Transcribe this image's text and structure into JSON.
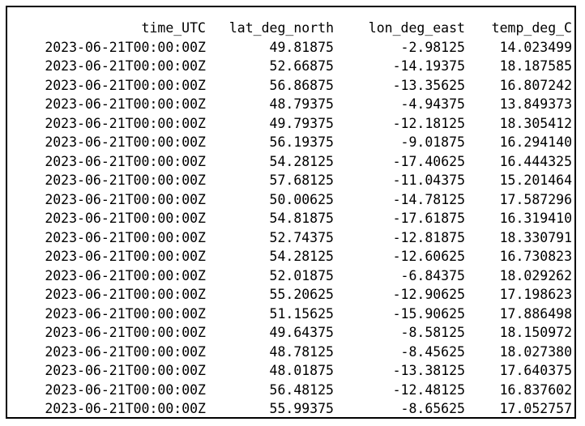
{
  "table": {
    "columns": [
      "time_UTC",
      "lat_deg_north",
      "lon_deg_east",
      "temp_deg_C"
    ],
    "rows": [
      [
        "2023-06-21T00:00:00Z",
        "49.81875",
        "-2.98125",
        "14.023499"
      ],
      [
        "2023-06-21T00:00:00Z",
        "52.66875",
        "-14.19375",
        "18.187585"
      ],
      [
        "2023-06-21T00:00:00Z",
        "56.86875",
        "-13.35625",
        "16.807242"
      ],
      [
        "2023-06-21T00:00:00Z",
        "48.79375",
        "-4.94375",
        "13.849373"
      ],
      [
        "2023-06-21T00:00:00Z",
        "49.79375",
        "-12.18125",
        "18.305412"
      ],
      [
        "2023-06-21T00:00:00Z",
        "56.19375",
        "-9.01875",
        "16.294140"
      ],
      [
        "2023-06-21T00:00:00Z",
        "54.28125",
        "-17.40625",
        "16.444325"
      ],
      [
        "2023-06-21T00:00:00Z",
        "57.68125",
        "-11.04375",
        "15.201464"
      ],
      [
        "2023-06-21T00:00:00Z",
        "50.00625",
        "-14.78125",
        "17.587296"
      ],
      [
        "2023-06-21T00:00:00Z",
        "54.81875",
        "-17.61875",
        "16.319410"
      ],
      [
        "2023-06-21T00:00:00Z",
        "52.74375",
        "-12.81875",
        "18.330791"
      ],
      [
        "2023-06-21T00:00:00Z",
        "54.28125",
        "-12.60625",
        "16.730823"
      ],
      [
        "2023-06-21T00:00:00Z",
        "52.01875",
        "-6.84375",
        "18.029262"
      ],
      [
        "2023-06-21T00:00:00Z",
        "55.20625",
        "-12.90625",
        "17.198623"
      ],
      [
        "2023-06-21T00:00:00Z",
        "51.15625",
        "-15.90625",
        "17.886498"
      ],
      [
        "2023-06-21T00:00:00Z",
        "49.64375",
        "-8.58125",
        "18.150972"
      ],
      [
        "2023-06-21T00:00:00Z",
        "48.78125",
        "-8.45625",
        "18.027380"
      ],
      [
        "2023-06-21T00:00:00Z",
        "48.01875",
        "-13.38125",
        "17.640375"
      ],
      [
        "2023-06-21T00:00:00Z",
        "56.48125",
        "-12.48125",
        "16.837602"
      ],
      [
        "2023-06-21T00:00:00Z",
        "55.99375",
        "-8.65625",
        "17.052757"
      ]
    ]
  }
}
